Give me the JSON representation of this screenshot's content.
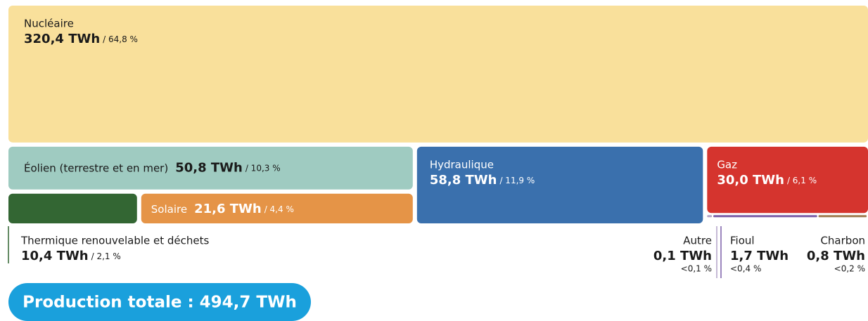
{
  "chart_data": {
    "type": "treemap",
    "categories": [
      "Nucléaire",
      "Éolien (terrestre et en mer)",
      "Solaire",
      "Thermique renouvelable et déchets",
      "Hydraulique",
      "Gaz",
      "Autre",
      "Fioul",
      "Charbon"
    ],
    "values": [
      320.4,
      50.8,
      21.6,
      10.4,
      58.8,
      30.0,
      0.1,
      1.7,
      0.8
    ],
    "value_labels": [
      "320,4 TWh",
      "50,8 TWh",
      "21,6 TWh",
      "10,4 TWh",
      "58,8 TWh",
      "30,0 TWh",
      "0,1 TWh",
      "1,7 TWh",
      "0,8 TWh"
    ],
    "shares": [
      64.8,
      10.3,
      4.4,
      2.1,
      11.9,
      6.1,
      0.1,
      0.4,
      0.2
    ],
    "share_labels": [
      "/ 64,8 %",
      "/ 10,3 %",
      "/ 4,4 %",
      "/ 2,1 %",
      "/ 11,9 %",
      "/ 6,1 %",
      "<0,1 %",
      "<0,4 %",
      "<0,2 %"
    ],
    "colors": [
      "#f9e09b",
      "#9fcbc1",
      "#e59447",
      "#336633",
      "#3a70ad",
      "#d5342e",
      "#b3a3c8",
      "#7b5ea8",
      "#a07c50"
    ],
    "total": "Production totale : 494,7 TWh"
  }
}
